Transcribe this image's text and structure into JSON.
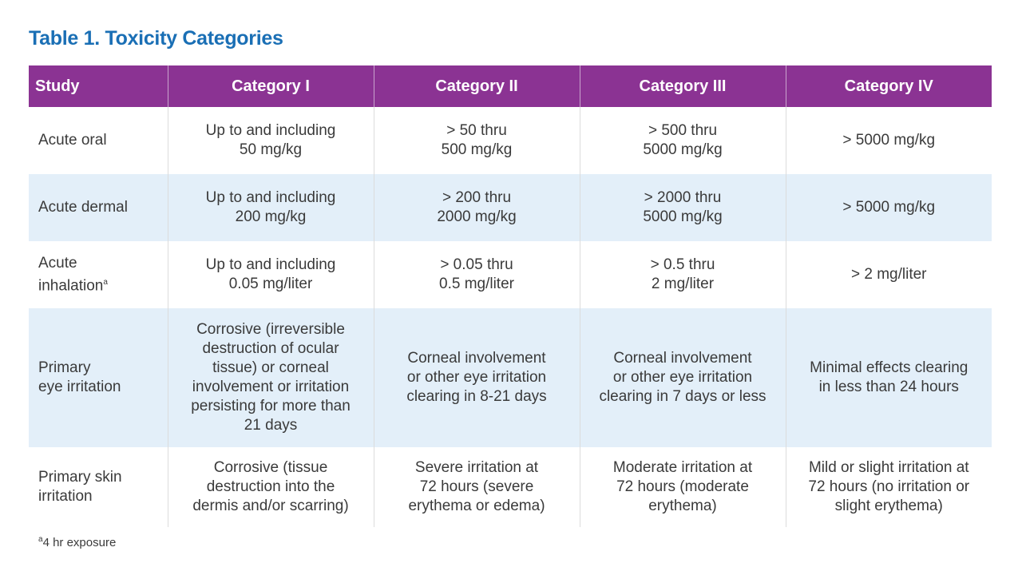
{
  "title": "Table 1. Toxicity Categories",
  "header": [
    "Study",
    "Category I",
    "Category II",
    "Category III",
    "Category IV"
  ],
  "rows": [
    {
      "study": [
        "Acute oral"
      ],
      "study_sup": "",
      "cells": [
        [
          "Up to and including",
          "50 mg/kg"
        ],
        [
          "> 50 thru",
          "500 mg/kg"
        ],
        [
          "> 500 thru",
          "5000 mg/kg"
        ],
        [
          "> 5000 mg/kg"
        ]
      ]
    },
    {
      "study": [
        "Acute dermal"
      ],
      "study_sup": "",
      "cells": [
        [
          "Up to and including",
          "200 mg/kg"
        ],
        [
          "> 200 thru",
          "2000 mg/kg"
        ],
        [
          "> 2000 thru",
          "5000 mg/kg"
        ],
        [
          "> 5000 mg/kg"
        ]
      ]
    },
    {
      "study": [
        "Acute",
        "inhalation"
      ],
      "study_sup": "a",
      "cells": [
        [
          "Up to and including",
          "0.05 mg/liter"
        ],
        [
          "> 0.05 thru",
          "0.5 mg/liter"
        ],
        [
          "> 0.5 thru",
          "2 mg/liter"
        ],
        [
          "> 2 mg/liter"
        ]
      ]
    },
    {
      "study": [
        "Primary",
        "eye irritation"
      ],
      "study_sup": "",
      "cells": [
        [
          "Corrosive (irreversible",
          "destruction of ocular",
          "tissue) or corneal",
          "involvement or irritation",
          "persisting for more than",
          "21 days"
        ],
        [
          "Corneal involvement",
          "or other eye irritation",
          "clearing in 8-21 days"
        ],
        [
          "Corneal involvement",
          "or other eye irritation",
          "clearing in 7 days or less"
        ],
        [
          "Minimal effects clearing",
          "in less than 24 hours"
        ]
      ]
    },
    {
      "study": [
        "Primary skin",
        "irritation"
      ],
      "study_sup": "",
      "cells": [
        [
          "Corrosive (tissue",
          "destruction into the",
          "dermis and/or scarring)"
        ],
        [
          "Severe irritation at",
          "72 hours (severe",
          "erythema or edema)"
        ],
        [
          "Moderate irritation at",
          "72 hours (moderate",
          "erythema)"
        ],
        [
          "Mild or slight irritation at",
          "72 hours (no irritation or",
          "slight erythema)"
        ]
      ]
    }
  ],
  "footnote_mark": "a",
  "footnote_text": "4 hr exposure"
}
